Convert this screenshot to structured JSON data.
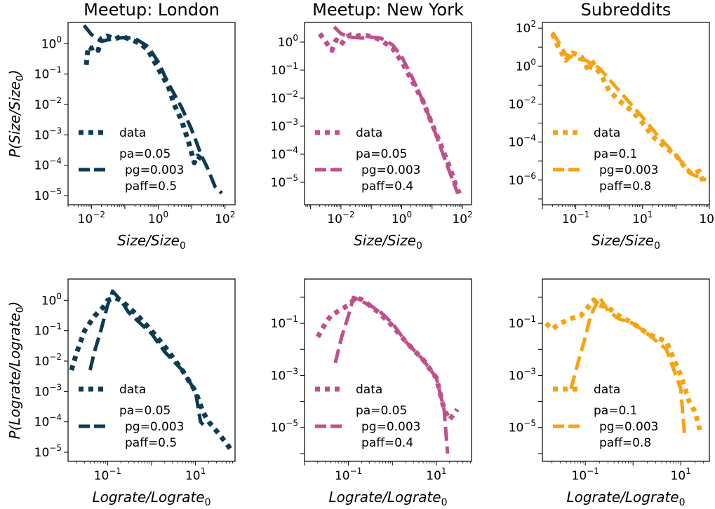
{
  "chart_data": [
    {
      "type": "line",
      "title": "Meetup: London",
      "xlabel": "Size/Size",
      "xlabel_sub": "0",
      "ylabel": "P(Size/Size",
      "ylabel_sub": "0",
      "ylabel_tail": ")",
      "xscale": "log",
      "yscale": "log",
      "xlim_exp": [
        -2.7,
        2.3
      ],
      "ylim_exp": [
        -5.3,
        0.7
      ],
      "xticks_exp": [
        -2,
        0,
        2
      ],
      "yticks_exp": [
        0,
        -1,
        -2,
        -3,
        -4,
        -5
      ],
      "color": "#0d3b52",
      "legend": {
        "data_label": "data",
        "model_lines": [
          "pa=0.05",
          "pg=0.003",
          "paff=0.5"
        ]
      },
      "series": [
        {
          "name": "data",
          "style": "dotted",
          "x": [
            0.007,
            0.008,
            0.01,
            0.013,
            0.016,
            0.02,
            0.03,
            0.05,
            0.08,
            0.12,
            0.2,
            0.3,
            0.5,
            1,
            2,
            3,
            5,
            8,
            12,
            15,
            20
          ],
          "y": [
            0.2,
            0.8,
            0.7,
            0.8,
            0.6,
            1.5,
            1.8,
            1.4,
            1.8,
            1.5,
            1.2,
            1.0,
            0.6,
            0.15,
            0.04,
            0.01,
            0.003,
            0.0006,
            0.00012,
            0.0002,
            0.00016
          ]
        },
        {
          "name": "model",
          "style": "dashed",
          "x": [
            0.006,
            0.01,
            0.02,
            0.05,
            0.1,
            0.2,
            0.5,
            1,
            2,
            5,
            10,
            20,
            30,
            50,
            80
          ],
          "y": [
            4,
            2,
            1.2,
            1.5,
            1.6,
            1.5,
            0.8,
            0.25,
            0.05,
            0.008,
            0.0015,
            0.0002,
            8e-05,
            2e-05,
            1.2e-05
          ]
        }
      ]
    },
    {
      "type": "line",
      "title": "Meetup: New York",
      "xlabel": "Size/Size",
      "xlabel_sub": "0",
      "xscale": "log",
      "yscale": "log",
      "xlim_exp": [
        -3.2,
        2.3
      ],
      "ylim_exp": [
        -5.8,
        0.7
      ],
      "xticks_exp": [
        -2,
        0,
        2
      ],
      "yticks_exp": [
        0,
        -1,
        -2,
        -3,
        -4,
        -5
      ],
      "color": "#c0508c",
      "legend": {
        "data_label": "data",
        "model_lines": [
          "pa=0.05",
          "pg=0.003",
          "paff=0.4"
        ]
      },
      "series": [
        {
          "name": "data",
          "style": "dotted",
          "x": [
            0.002,
            0.003,
            0.005,
            0.007,
            0.01,
            0.015,
            0.02,
            0.03,
            0.05,
            0.1,
            0.2,
            0.5,
            1,
            2,
            5,
            10,
            20,
            40,
            60,
            80
          ],
          "y": [
            2,
            1.1,
            0.5,
            1.2,
            0.8,
            1.5,
            1.8,
            1.6,
            1.8,
            1.6,
            1.2,
            0.6,
            0.2,
            0.05,
            0.008,
            0.0012,
            0.0002,
            3e-05,
            8e-06,
            4e-06
          ]
        },
        {
          "name": "model",
          "style": "dashed",
          "x": [
            0.006,
            0.01,
            0.02,
            0.05,
            0.1,
            0.2,
            0.5,
            1,
            2,
            5,
            10,
            20,
            40,
            70
          ],
          "y": [
            3.5,
            2,
            1.5,
            1.4,
            1.5,
            1.4,
            0.8,
            0.3,
            0.07,
            0.008,
            0.0012,
            0.00015,
            2e-05,
            4e-06
          ]
        }
      ]
    },
    {
      "type": "line",
      "title": "Subreddits",
      "xlabel": "Size/Size",
      "xlabel_sub": "0",
      "xscale": "log",
      "yscale": "log",
      "xlim_exp": [
        -2.0,
        3.0
      ],
      "ylim_exp": [
        -7.3,
        2.3
      ],
      "xticks_exp": [
        -1,
        1,
        3
      ],
      "yticks_exp": [
        2,
        0,
        -2,
        -4,
        -6
      ],
      "color": "#f6a313",
      "legend": {
        "data_label": "data",
        "model_lines": [
          "pa=0.1",
          "pg=0.003",
          "paff=0.8"
        ]
      },
      "series": [
        {
          "name": "data",
          "style": "dotted",
          "x": [
            0.02,
            0.03,
            0.05,
            0.08,
            0.15,
            0.25,
            0.3,
            0.4,
            0.6,
            1,
            2,
            5,
            10,
            20,
            50,
            100,
            200,
            300,
            500,
            700
          ],
          "y": [
            50,
            10,
            2,
            5,
            3,
            0.5,
            2,
            0.8,
            0.3,
            0.05,
            0.015,
            0.004,
            0.001,
            0.0002,
            5e-05,
            2e-05,
            4e-06,
            2e-06,
            3e-06,
            5e-07
          ]
        },
        {
          "name": "model",
          "style": "dashed",
          "x": [
            0.02,
            0.03,
            0.05,
            0.08,
            0.1,
            0.2,
            0.5,
            1,
            2,
            5,
            10,
            30,
            100,
            300,
            800
          ],
          "y": [
            60,
            20,
            4,
            3,
            2.5,
            2,
            0.8,
            0.2,
            0.05,
            0.008,
            0.002,
            0.0002,
            2e-05,
            2e-06,
            1e-06
          ]
        }
      ]
    },
    {
      "type": "line",
      "title": "",
      "xlabel": "Lograte/Lograte",
      "xlabel_sub": "0",
      "ylabel": "P(Lograte/Lograte",
      "ylabel_sub": "0",
      "ylabel_tail": ")",
      "xscale": "log",
      "yscale": "log",
      "xlim_exp": [
        -1.9,
        1.9
      ],
      "ylim_exp": [
        -5.3,
        0.7
      ],
      "xticks_exp": [
        -1,
        1
      ],
      "yticks_exp": [
        0,
        -1,
        -2,
        -3,
        -4,
        -5
      ],
      "color": "#0d3b52",
      "legend": {
        "data_label": "data",
        "model_lines": [
          "pa=0.05",
          "pg=0.003",
          "paff=0.5"
        ]
      },
      "series": [
        {
          "name": "data",
          "style": "dotted",
          "x": [
            0.015,
            0.02,
            0.03,
            0.05,
            0.08,
            0.1,
            0.15,
            0.2,
            0.3,
            0.5,
            1,
            2,
            5,
            10,
            15,
            20,
            30,
            50,
            70
          ],
          "y": [
            0.005,
            0.02,
            0.1,
            0.3,
            0.6,
            1.0,
            1.2,
            1.0,
            0.6,
            0.3,
            0.1,
            0.03,
            0.005,
            0.001,
            0.0002,
            0.0001,
            5e-05,
            2e-05,
            1e-05
          ]
        },
        {
          "name": "model",
          "style": "dashed",
          "x": [
            0.04,
            0.05,
            0.07,
            0.1,
            0.13,
            0.2,
            0.3,
            0.5,
            1,
            2,
            5,
            10,
            13,
            15
          ],
          "y": [
            0.005,
            0.02,
            0.1,
            0.7,
            2.0,
            1.0,
            0.4,
            0.2,
            0.08,
            0.02,
            0.005,
            0.001,
            0.0001,
            8e-05
          ]
        }
      ]
    },
    {
      "type": "line",
      "title": "",
      "xlabel": "Lograte/Lograte",
      "xlabel_sub": "0",
      "xscale": "log",
      "yscale": "log",
      "xlim_exp": [
        -2.0,
        1.8
      ],
      "ylim_exp": [
        -6.3,
        0.7
      ],
      "xticks_exp": [
        -1,
        1
      ],
      "yticks_exp": [
        -1,
        -3,
        -5
      ],
      "color": "#c0508c",
      "legend": {
        "data_label": "data",
        "model_lines": [
          "pa=0.05",
          "pg=0.003",
          "paff=0.4"
        ]
      },
      "series": [
        {
          "name": "data",
          "style": "dotted",
          "x": [
            0.02,
            0.03,
            0.04,
            0.06,
            0.1,
            0.15,
            0.2,
            0.3,
            0.5,
            1,
            2,
            5,
            10,
            15,
            20,
            30
          ],
          "y": [
            0.03,
            0.1,
            0.2,
            0.3,
            0.5,
            1.0,
            0.8,
            0.5,
            0.25,
            0.08,
            0.02,
            0.004,
            0.0008,
            5e-05,
            2e-05,
            5e-05
          ]
        },
        {
          "name": "model",
          "style": "dashed",
          "x": [
            0.05,
            0.07,
            0.1,
            0.13,
            0.2,
            0.3,
            0.5,
            1,
            2,
            5,
            10,
            15,
            18
          ],
          "y": [
            0.003,
            0.03,
            0.2,
            1.0,
            0.7,
            0.5,
            0.3,
            0.1,
            0.02,
            0.004,
            0.0008,
            5e-05,
            1e-06
          ]
        }
      ]
    },
    {
      "type": "line",
      "title": "",
      "xlabel": "Lograte/Lograte",
      "xlabel_sub": "0",
      "xscale": "log",
      "yscale": "log",
      "xlim_exp": [
        -1.9,
        1.6
      ],
      "ylim_exp": [
        -6.3,
        0.7
      ],
      "xticks_exp": [
        -1,
        1
      ],
      "yticks_exp": [
        -1,
        -3,
        -5
      ],
      "color": "#f6a313",
      "legend": {
        "data_label": "data",
        "model_lines": [
          "pa=0.1",
          "pg=0.003",
          "paff=0.8"
        ]
      },
      "series": [
        {
          "name": "data",
          "style": "dotted",
          "x": [
            0.015,
            0.02,
            0.03,
            0.05,
            0.08,
            0.1,
            0.15,
            0.2,
            0.3,
            0.5,
            1,
            2,
            5,
            10,
            15,
            20,
            25
          ],
          "y": [
            0.1,
            0.06,
            0.1,
            0.15,
            0.2,
            0.3,
            0.8,
            0.5,
            0.4,
            0.2,
            0.1,
            0.04,
            0.02,
            0.001,
            0.0001,
            4e-05,
            8e-06
          ]
        },
        {
          "name": "model",
          "style": "dashed",
          "x": [
            0.05,
            0.07,
            0.1,
            0.13,
            0.2,
            0.3,
            0.5,
            1,
            2,
            5,
            10,
            12
          ],
          "y": [
            0.0003,
            0.003,
            0.03,
            0.2,
            1.0,
            0.3,
            0.15,
            0.1,
            0.04,
            0.01,
            0.0003,
            5e-06
          ]
        }
      ]
    }
  ]
}
